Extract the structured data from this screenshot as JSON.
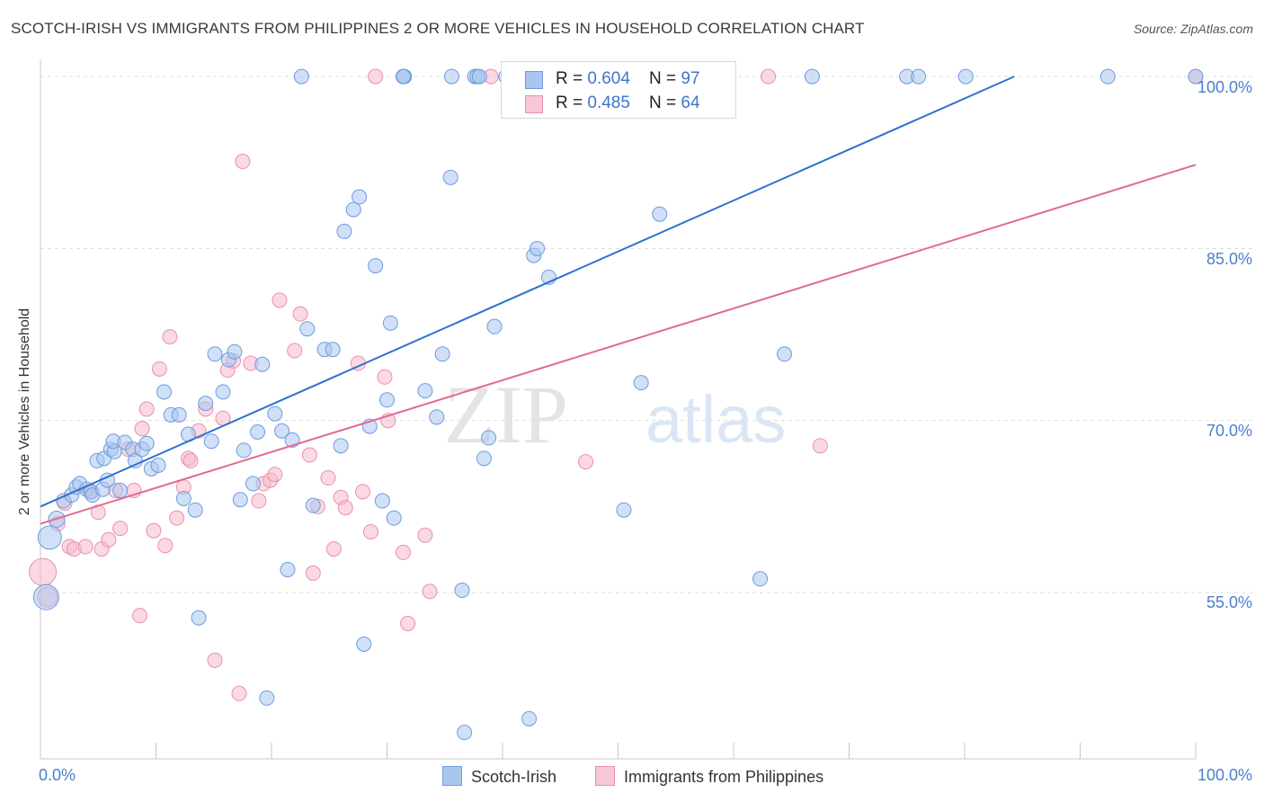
{
  "title": "SCOTCH-IRISH VS IMMIGRANTS FROM PHILIPPINES 2 OR MORE VEHICLES IN HOUSEHOLD CORRELATION CHART",
  "source": "Source: ZipAtlas.com",
  "watermark": {
    "zip": "ZIP",
    "atlas": "atlas"
  },
  "colors": {
    "scotch_fill": "#a9c6ef",
    "scotch_stroke": "#6f9be0",
    "scotch_line": "#2f72cf",
    "phil_fill": "#f6b9cb",
    "phil_stroke": "#eb8fae",
    "phil_line": "#e06a94",
    "grid": "#dcdcdc",
    "tick_label": "#4a7fcf"
  },
  "legend": {
    "rows": [
      {
        "r_label": "R = ",
        "r_value": "0.604",
        "n_label": "N = ",
        "n_value": "97"
      },
      {
        "r_label": "R = ",
        "r_value": "0.485",
        "n_label": "N = ",
        "n_value": "64"
      }
    ]
  },
  "bottom_legend": {
    "scotch": "Scotch-Irish",
    "phil": "Immigrants from Philippines"
  },
  "chart_data": {
    "type": "scatter",
    "ylabel": "2 or more Vehicles in Household",
    "x_tick_labels": {
      "left": "0.0%",
      "right": "100.0%"
    },
    "y_tick_labels": [
      "100.0%",
      "85.0%",
      "70.0%",
      "55.0%"
    ],
    "y_ticks": [
      100,
      85,
      70,
      55
    ],
    "xlim": [
      0,
      100
    ],
    "ylim": [
      40.5,
      101.5
    ],
    "grid": true,
    "series": [
      {
        "name": "Scotch-Irish",
        "r": 0.604,
        "n": 97,
        "trend": {
          "x": [
            0,
            84.3
          ],
          "y": [
            62.5,
            100
          ]
        },
        "points": [
          {
            "x": 0.5,
            "y": 54.6,
            "s": 14
          },
          {
            "x": 0.8,
            "y": 59.8,
            "s": 13
          },
          {
            "x": 1.4,
            "y": 61.4,
            "s": 9
          },
          {
            "x": 2.0,
            "y": 63.0,
            "s": 8
          },
          {
            "x": 2.7,
            "y": 63.5,
            "s": 8
          },
          {
            "x": 3.1,
            "y": 64.2,
            "s": 8
          },
          {
            "x": 3.4,
            "y": 64.5,
            "s": 8
          },
          {
            "x": 4.0,
            "y": 64.0,
            "s": 8
          },
          {
            "x": 4.4,
            "y": 63.8,
            "s": 8
          },
          {
            "x": 4.5,
            "y": 63.5,
            "s": 8
          },
          {
            "x": 4.9,
            "y": 66.5,
            "s": 8
          },
          {
            "x": 5.5,
            "y": 66.7,
            "s": 8
          },
          {
            "x": 5.4,
            "y": 64.0,
            "s": 8
          },
          {
            "x": 5.8,
            "y": 64.8,
            "s": 8
          },
          {
            "x": 6.1,
            "y": 67.5,
            "s": 8
          },
          {
            "x": 6.4,
            "y": 67.3,
            "s": 8
          },
          {
            "x": 6.3,
            "y": 68.2,
            "s": 8
          },
          {
            "x": 6.9,
            "y": 63.9,
            "s": 8
          },
          {
            "x": 7.3,
            "y": 68.1,
            "s": 8
          },
          {
            "x": 8.0,
            "y": 67.5,
            "s": 8
          },
          {
            "x": 8.2,
            "y": 66.5,
            "s": 8
          },
          {
            "x": 8.8,
            "y": 67.5,
            "s": 8
          },
          {
            "x": 9.2,
            "y": 68.0,
            "s": 8
          },
          {
            "x": 9.6,
            "y": 65.8,
            "s": 8
          },
          {
            "x": 10.2,
            "y": 66.1,
            "s": 8
          },
          {
            "x": 10.7,
            "y": 72.5,
            "s": 8
          },
          {
            "x": 11.3,
            "y": 70.5,
            "s": 8
          },
          {
            "x": 12.0,
            "y": 70.5,
            "s": 8
          },
          {
            "x": 12.4,
            "y": 63.2,
            "s": 8
          },
          {
            "x": 12.8,
            "y": 68.8,
            "s": 8
          },
          {
            "x": 13.4,
            "y": 62.2,
            "s": 8
          },
          {
            "x": 13.7,
            "y": 52.8,
            "s": 8
          },
          {
            "x": 14.3,
            "y": 71.5,
            "s": 8
          },
          {
            "x": 14.8,
            "y": 68.2,
            "s": 8
          },
          {
            "x": 15.1,
            "y": 75.8,
            "s": 8
          },
          {
            "x": 15.8,
            "y": 72.5,
            "s": 8
          },
          {
            "x": 16.3,
            "y": 75.3,
            "s": 8
          },
          {
            "x": 16.8,
            "y": 76.0,
            "s": 8
          },
          {
            "x": 17.3,
            "y": 63.1,
            "s": 8
          },
          {
            "x": 17.6,
            "y": 67.4,
            "s": 8
          },
          {
            "x": 18.4,
            "y": 64.5,
            "s": 8
          },
          {
            "x": 18.8,
            "y": 69.0,
            "s": 8
          },
          {
            "x": 19.2,
            "y": 74.9,
            "s": 8
          },
          {
            "x": 19.6,
            "y": 45.8,
            "s": 8
          },
          {
            "x": 20.3,
            "y": 70.6,
            "s": 8
          },
          {
            "x": 20.9,
            "y": 69.1,
            "s": 8
          },
          {
            "x": 21.4,
            "y": 57.0,
            "s": 8
          },
          {
            "x": 21.8,
            "y": 68.3,
            "s": 8
          },
          {
            "x": 22.6,
            "y": 100,
            "s": 8
          },
          {
            "x": 23.1,
            "y": 78.0,
            "s": 8
          },
          {
            "x": 23.6,
            "y": 62.6,
            "s": 8
          },
          {
            "x": 24.6,
            "y": 76.2,
            "s": 8
          },
          {
            "x": 25.3,
            "y": 76.2,
            "s": 8
          },
          {
            "x": 26.0,
            "y": 67.8,
            "s": 8
          },
          {
            "x": 26.3,
            "y": 86.5,
            "s": 8
          },
          {
            "x": 27.1,
            "y": 88.4,
            "s": 8
          },
          {
            "x": 27.6,
            "y": 89.5,
            "s": 8
          },
          {
            "x": 28.0,
            "y": 50.5,
            "s": 8
          },
          {
            "x": 28.5,
            "y": 69.5,
            "s": 8
          },
          {
            "x": 29.0,
            "y": 83.5,
            "s": 8
          },
          {
            "x": 29.6,
            "y": 63.0,
            "s": 8
          },
          {
            "x": 30.0,
            "y": 71.8,
            "s": 8
          },
          {
            "x": 30.3,
            "y": 78.5,
            "s": 8
          },
          {
            "x": 30.6,
            "y": 61.5,
            "s": 8
          },
          {
            "x": 31.4,
            "y": 100,
            "s": 8
          },
          {
            "x": 31.5,
            "y": 100,
            "s": 8
          },
          {
            "x": 31.4,
            "y": 100,
            "s": 8
          },
          {
            "x": 33.3,
            "y": 72.6,
            "s": 8
          },
          {
            "x": 34.3,
            "y": 70.3,
            "s": 8
          },
          {
            "x": 34.8,
            "y": 75.8,
            "s": 8
          },
          {
            "x": 35.5,
            "y": 91.2,
            "s": 8
          },
          {
            "x": 35.6,
            "y": 100,
            "s": 8
          },
          {
            "x": 36.5,
            "y": 55.2,
            "s": 8
          },
          {
            "x": 36.7,
            "y": 42.8,
            "s": 8
          },
          {
            "x": 37.6,
            "y": 100,
            "s": 8
          },
          {
            "x": 37.8,
            "y": 100,
            "s": 8
          },
          {
            "x": 38.0,
            "y": 100,
            "s": 8
          },
          {
            "x": 38.4,
            "y": 66.7,
            "s": 8
          },
          {
            "x": 38.8,
            "y": 68.5,
            "s": 8
          },
          {
            "x": 39.3,
            "y": 78.2,
            "s": 8
          },
          {
            "x": 40.3,
            "y": 100,
            "s": 8
          },
          {
            "x": 40.7,
            "y": 100,
            "s": 8
          },
          {
            "x": 41.0,
            "y": 100,
            "s": 8
          },
          {
            "x": 42.3,
            "y": 44.0,
            "s": 8
          },
          {
            "x": 42.7,
            "y": 84.4,
            "s": 8
          },
          {
            "x": 43.0,
            "y": 85.0,
            "s": 8
          },
          {
            "x": 44.0,
            "y": 82.5,
            "s": 8
          },
          {
            "x": 50.5,
            "y": 62.2,
            "s": 8
          },
          {
            "x": 52.0,
            "y": 73.3,
            "s": 8
          },
          {
            "x": 53.6,
            "y": 88.0,
            "s": 8
          },
          {
            "x": 55.2,
            "y": 100,
            "s": 8
          },
          {
            "x": 57.0,
            "y": 100,
            "s": 8
          },
          {
            "x": 62.3,
            "y": 56.2,
            "s": 8
          },
          {
            "x": 64.4,
            "y": 75.8,
            "s": 8
          },
          {
            "x": 66.8,
            "y": 100,
            "s": 8
          },
          {
            "x": 75.0,
            "y": 100,
            "s": 8
          },
          {
            "x": 76.0,
            "y": 100,
            "s": 8
          },
          {
            "x": 80.1,
            "y": 100,
            "s": 8
          },
          {
            "x": 92.4,
            "y": 100,
            "s": 8
          },
          {
            "x": 100,
            "y": 100,
            "s": 8
          }
        ]
      },
      {
        "name": "Immigrants from Philippines",
        "r": 0.485,
        "n": 64,
        "trend": {
          "x": [
            0,
            100
          ],
          "y": [
            61,
            92.3
          ]
        },
        "points": [
          {
            "x": 0.2,
            "y": 56.8,
            "s": 15
          },
          {
            "x": 0.6,
            "y": 54.6,
            "s": 11
          },
          {
            "x": 1.5,
            "y": 61.0,
            "s": 8
          },
          {
            "x": 2.1,
            "y": 62.8,
            "s": 8
          },
          {
            "x": 2.5,
            "y": 59.0,
            "s": 8
          },
          {
            "x": 2.9,
            "y": 58.8,
            "s": 8
          },
          {
            "x": 3.9,
            "y": 59.0,
            "s": 8
          },
          {
            "x": 4.3,
            "y": 63.8,
            "s": 8
          },
          {
            "x": 5.0,
            "y": 62.0,
            "s": 8
          },
          {
            "x": 5.3,
            "y": 58.8,
            "s": 8
          },
          {
            "x": 5.9,
            "y": 59.6,
            "s": 8
          },
          {
            "x": 6.5,
            "y": 63.9,
            "s": 8
          },
          {
            "x": 6.9,
            "y": 60.6,
            "s": 8
          },
          {
            "x": 7.6,
            "y": 67.5,
            "s": 8
          },
          {
            "x": 8.1,
            "y": 63.9,
            "s": 8
          },
          {
            "x": 8.6,
            "y": 53.0,
            "s": 8
          },
          {
            "x": 8.8,
            "y": 69.3,
            "s": 8
          },
          {
            "x": 9.2,
            "y": 71.0,
            "s": 8
          },
          {
            "x": 9.8,
            "y": 60.4,
            "s": 8
          },
          {
            "x": 10.3,
            "y": 74.5,
            "s": 8
          },
          {
            "x": 10.8,
            "y": 59.1,
            "s": 8
          },
          {
            "x": 11.2,
            "y": 77.3,
            "s": 8
          },
          {
            "x": 11.8,
            "y": 61.5,
            "s": 8
          },
          {
            "x": 12.4,
            "y": 64.2,
            "s": 8
          },
          {
            "x": 12.8,
            "y": 66.7,
            "s": 8
          },
          {
            "x": 13.0,
            "y": 66.5,
            "s": 8
          },
          {
            "x": 13.7,
            "y": 69.1,
            "s": 8
          },
          {
            "x": 14.3,
            "y": 71.0,
            "s": 8
          },
          {
            "x": 15.1,
            "y": 49.1,
            "s": 8
          },
          {
            "x": 15.8,
            "y": 70.2,
            "s": 8
          },
          {
            "x": 16.2,
            "y": 74.4,
            "s": 8
          },
          {
            "x": 16.7,
            "y": 75.2,
            "s": 8
          },
          {
            "x": 17.2,
            "y": 46.2,
            "s": 8
          },
          {
            "x": 17.5,
            "y": 92.6,
            "s": 8
          },
          {
            "x": 18.2,
            "y": 75.0,
            "s": 8
          },
          {
            "x": 18.9,
            "y": 63.0,
            "s": 8
          },
          {
            "x": 19.3,
            "y": 64.5,
            "s": 8
          },
          {
            "x": 19.9,
            "y": 64.8,
            "s": 8
          },
          {
            "x": 20.3,
            "y": 65.3,
            "s": 8
          },
          {
            "x": 20.7,
            "y": 80.5,
            "s": 8
          },
          {
            "x": 22.0,
            "y": 76.1,
            "s": 8
          },
          {
            "x": 22.5,
            "y": 79.3,
            "s": 8
          },
          {
            "x": 23.3,
            "y": 67.0,
            "s": 8
          },
          {
            "x": 23.6,
            "y": 56.7,
            "s": 8
          },
          {
            "x": 24.0,
            "y": 62.5,
            "s": 8
          },
          {
            "x": 24.9,
            "y": 65.0,
            "s": 8
          },
          {
            "x": 25.4,
            "y": 58.8,
            "s": 8
          },
          {
            "x": 26.0,
            "y": 63.3,
            "s": 8
          },
          {
            "x": 26.4,
            "y": 62.4,
            "s": 8
          },
          {
            "x": 27.5,
            "y": 75.0,
            "s": 8
          },
          {
            "x": 27.9,
            "y": 63.8,
            "s": 8
          },
          {
            "x": 28.6,
            "y": 60.3,
            "s": 8
          },
          {
            "x": 29.8,
            "y": 73.8,
            "s": 8
          },
          {
            "x": 30.1,
            "y": 70.0,
            "s": 8
          },
          {
            "x": 31.4,
            "y": 58.5,
            "s": 8
          },
          {
            "x": 31.8,
            "y": 52.3,
            "s": 8
          },
          {
            "x": 33.3,
            "y": 60.0,
            "s": 8
          },
          {
            "x": 33.7,
            "y": 55.1,
            "s": 8
          },
          {
            "x": 39.0,
            "y": 100,
            "s": 8
          },
          {
            "x": 47.2,
            "y": 66.4,
            "s": 8
          },
          {
            "x": 63.0,
            "y": 100,
            "s": 8
          },
          {
            "x": 67.5,
            "y": 67.8,
            "s": 8
          },
          {
            "x": 100,
            "y": 100,
            "s": 8
          },
          {
            "x": 29.0,
            "y": 100,
            "s": 8
          }
        ]
      }
    ]
  }
}
